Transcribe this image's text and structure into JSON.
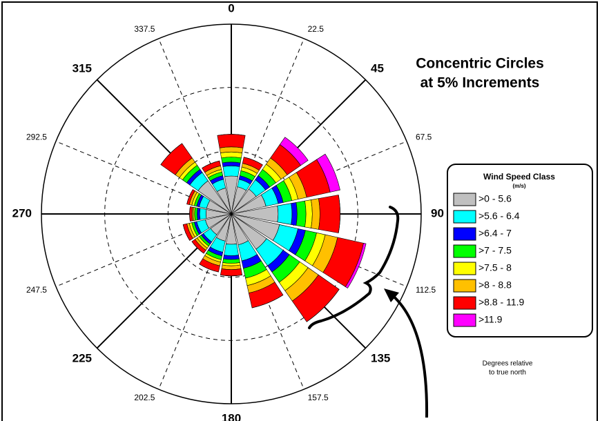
{
  "chart_data": {
    "type": "windrose",
    "annotations": [
      "Concentric Circles",
      "at 5% Increments"
    ],
    "note": [
      "Degrees relative",
      "to true north"
    ],
    "legend_title": "Wind Speed Class",
    "legend_subtitle": "(m/s)",
    "x": [
      0,
      22.5,
      45,
      67.5,
      90,
      112.5,
      135,
      157.5,
      180,
      202.5,
      225,
      247.5,
      270,
      292.5,
      315,
      337.5
    ],
    "rlim": [
      0,
      15
    ],
    "rticks": [
      5,
      10,
      15
    ],
    "series": [
      {
        "name": ">0 - 5.6",
        "color": "#c0c0c0",
        "values": [
          3.0,
          2.2,
          2.4,
          2.8,
          3.7,
          3.9,
          3.4,
          2.5,
          2.4,
          2.2,
          2.0,
          2.1,
          2.0,
          2.0,
          3.2,
          2.1
        ]
      },
      {
        "name": ">5.6 - 6.4",
        "color": "#00ffff",
        "values": [
          0.8,
          0.6,
          0.9,
          1.0,
          1.1,
          1.5,
          1.6,
          1.3,
          0.9,
          0.9,
          0.7,
          0.7,
          0.5,
          0.6,
          0.8,
          0.7
        ]
      },
      {
        "name": ">6.4 - 7",
        "color": "#0000ff",
        "values": [
          0.3,
          0.3,
          0.4,
          0.4,
          0.4,
          0.6,
          0.6,
          0.6,
          0.3,
          0.3,
          0.2,
          0.2,
          0.2,
          0.2,
          0.3,
          0.3
        ]
      },
      {
        "name": ">7 - 7.5",
        "color": "#00ff00",
        "values": [
          0.4,
          0.4,
          0.6,
          0.7,
          0.7,
          0.9,
          1.0,
          0.8,
          0.3,
          0.3,
          0.2,
          0.2,
          0.2,
          0.2,
          0.4,
          0.3
        ]
      },
      {
        "name": ">7.5 - 8",
        "color": "#ffff00",
        "values": [
          0.4,
          0.3,
          0.5,
          0.5,
          0.5,
          0.7,
          0.8,
          0.6,
          0.2,
          0.2,
          0.2,
          0.2,
          0.1,
          0.2,
          0.3,
          0.2
        ]
      },
      {
        "name": ">8 - 8.8",
        "color": "#ffc000",
        "values": [
          0.4,
          0.3,
          0.6,
          0.7,
          0.6,
          1.0,
          1.0,
          0.6,
          0.3,
          0.3,
          0.2,
          0.2,
          0.1,
          0.2,
          0.4,
          0.3
        ]
      },
      {
        "name": ">8.8 - 11.9",
        "color": "#ff0000",
        "values": [
          1.0,
          0.5,
          1.3,
          1.9,
          1.6,
          2.1,
          2.0,
          1.2,
          0.5,
          0.5,
          0.3,
          0.3,
          0.2,
          0.2,
          1.4,
          0.4
        ]
      },
      {
        "name": ">11.9",
        "color": "#ff00ff",
        "values": [
          0,
          0,
          0.7,
          0.8,
          0,
          0.2,
          0,
          0,
          0,
          0,
          0,
          0,
          0,
          0,
          0,
          0
        ]
      }
    ]
  }
}
